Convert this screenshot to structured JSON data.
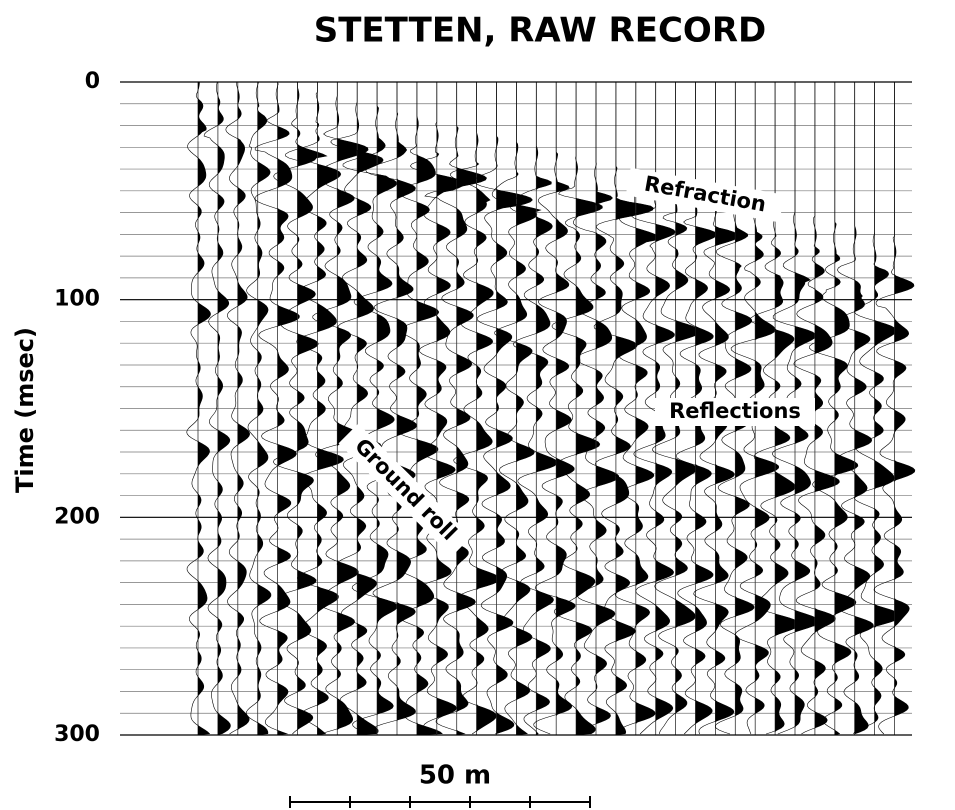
{
  "chart_data": {
    "type": "seismic",
    "title": "STETTEN, RAW RECORD",
    "y_label": "Time (msec)",
    "ylim": [
      0,
      300
    ],
    "yticks": [
      0,
      100,
      200,
      300
    ],
    "annotations": [
      "Refraction",
      "Reflections",
      "Ground roll"
    ],
    "scale_bar": "50 m"
  }
}
